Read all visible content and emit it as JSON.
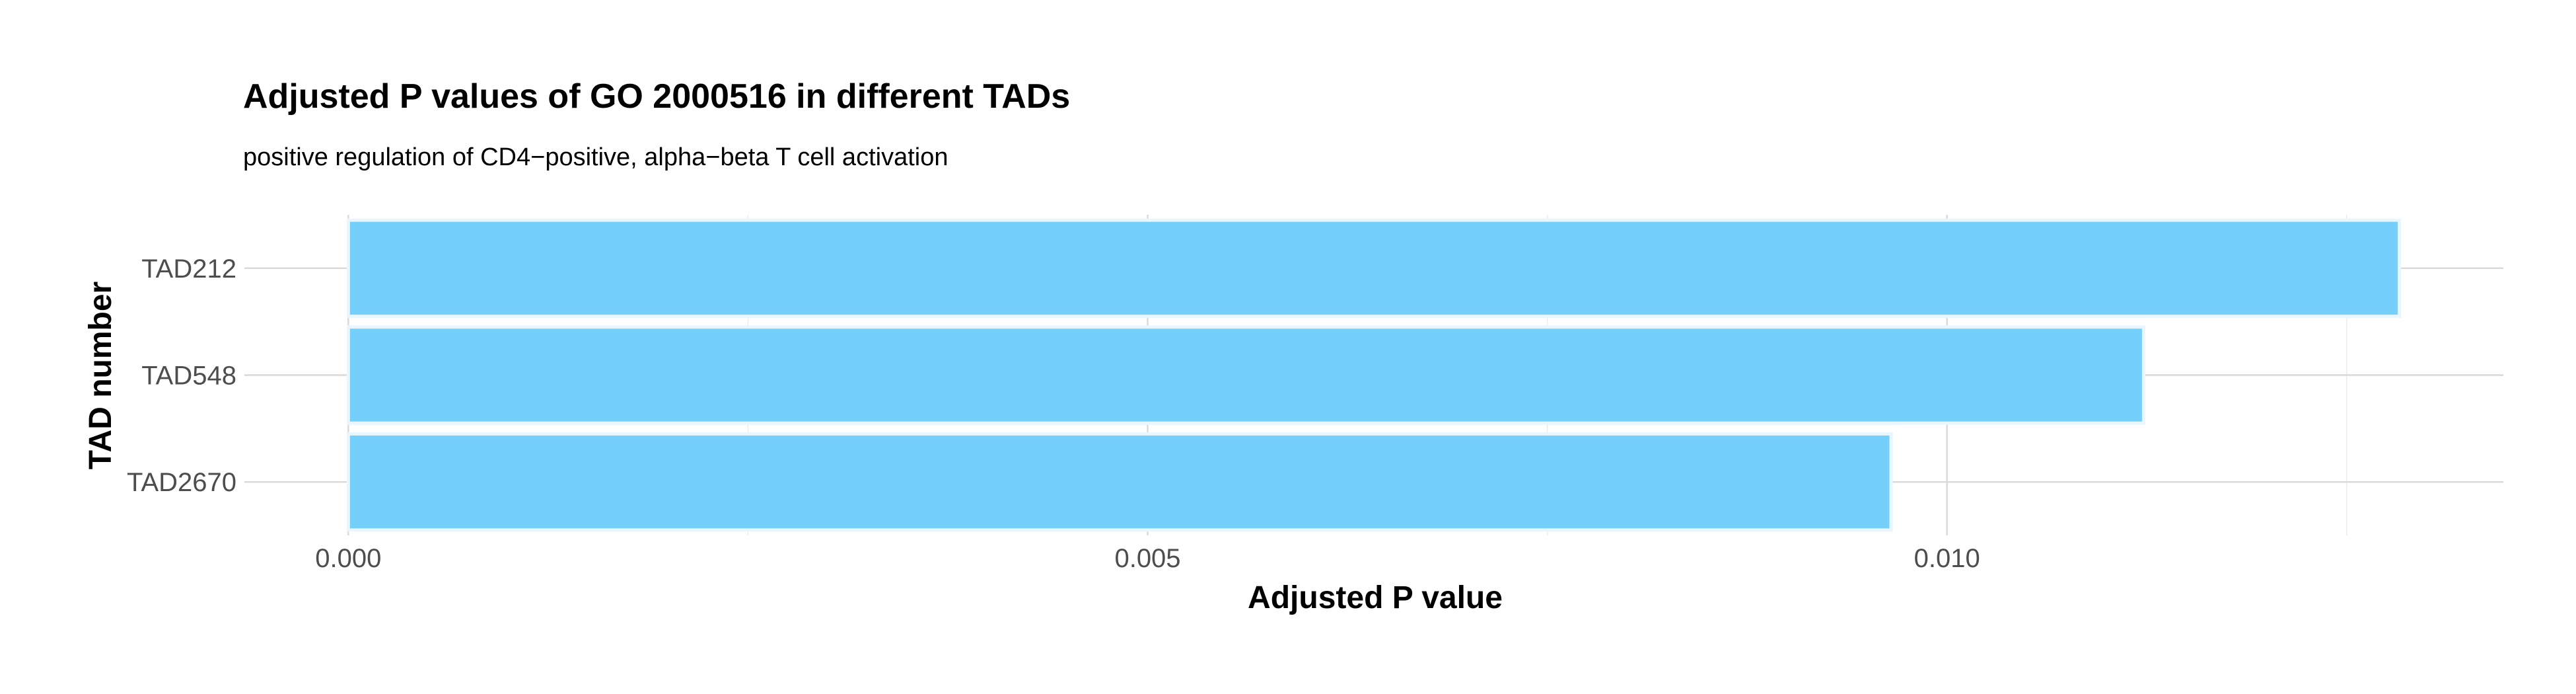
{
  "chart_data": {
    "type": "bar",
    "orientation": "horizontal",
    "title": "Adjusted P values of GO 2000516 in different TADs",
    "subtitle": "positive regulation of CD4−positive, alpha−beta T cell activation",
    "xlabel": "Adjusted P value",
    "ylabel": "TAD number",
    "categories": [
      "TAD212",
      "TAD548",
      "TAD2670"
    ],
    "values": [
      0.01283,
      0.01123,
      0.00965
    ],
    "xlim": [
      -0.00065,
      0.01348
    ],
    "x_ticks": [
      0.0,
      0.005,
      0.01
    ],
    "x_tick_labels": [
      "0.000",
      "0.005",
      "0.010"
    ],
    "grid": true,
    "legend": "none",
    "colors": {
      "bar_fill": "#74CFFB",
      "bar_outline": "#EAF6FE"
    }
  }
}
